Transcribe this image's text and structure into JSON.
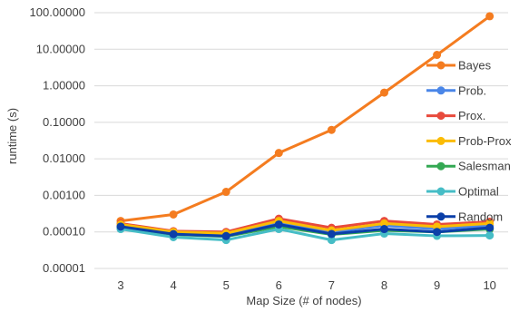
{
  "chart_data": {
    "type": "line",
    "title": "",
    "xlabel": "Map Size (# of nodes)",
    "ylabel": "runtime (s)",
    "x": [
      3,
      4,
      5,
      6,
      7,
      8,
      9,
      10
    ],
    "y_scale": "log",
    "ylim": [
      1e-05,
      100
    ],
    "y_ticks": [
      1e-05,
      0.0001,
      0.001,
      0.01,
      0.1,
      1,
      10,
      100
    ],
    "y_tick_labels": [
      "0.00001",
      "0.00010",
      "0.00100",
      "0.01000",
      "0.10000",
      "1.00000",
      "10.00000",
      "100.00000"
    ],
    "grid": "horizontal",
    "legend_position": "right",
    "series": [
      {
        "name": "Bayes",
        "color": "#F47C20",
        "values": [
          0.0002,
          0.0003,
          0.00125,
          0.0145,
          0.062,
          0.65,
          7.0,
          80.0
        ]
      },
      {
        "name": "Prob.",
        "color": "#4A86E8",
        "values": [
          0.00015,
          0.0001,
          9e-05,
          0.00018,
          0.0001,
          0.00015,
          0.00012,
          0.00015
        ]
      },
      {
        "name": "Prox.",
        "color": "#E84A3C",
        "values": [
          0.00017,
          0.000105,
          0.0001,
          0.00023,
          0.00013,
          0.0002,
          0.00016,
          0.00019
        ]
      },
      {
        "name": "Prob-Prox",
        "color": "#FBBC05",
        "values": [
          0.00016,
          0.0001,
          9.2e-05,
          0.0002,
          0.00011,
          0.00017,
          0.00014,
          0.00017
        ]
      },
      {
        "name": "Salesman",
        "color": "#34A853",
        "values": [
          0.00013,
          8.5e-05,
          7.5e-05,
          0.00014,
          8.5e-05,
          0.00011,
          0.0001,
          0.00012
        ]
      },
      {
        "name": "Optimal",
        "color": "#46BDC6",
        "values": [
          0.00012,
          7.2e-05,
          6e-05,
          0.00012,
          6e-05,
          9e-05,
          7.8e-05,
          8e-05
        ]
      },
      {
        "name": "Random",
        "color": "#0B3FA8",
        "values": [
          0.00014,
          8.7e-05,
          7.7e-05,
          0.00016,
          8.8e-05,
          0.00012,
          0.0001,
          0.00013
        ]
      }
    ]
  }
}
